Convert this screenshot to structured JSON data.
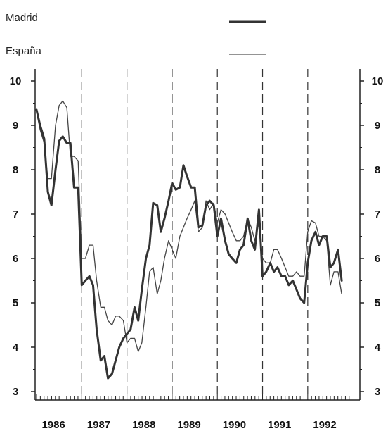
{
  "chart_data": {
    "type": "line",
    "title": "",
    "xlabel": "",
    "ylabel": "",
    "ylim": [
      3,
      10
    ],
    "xlim": [
      1986.0,
      1992.92
    ],
    "y_ticks": [
      "3",
      "4",
      "5",
      "6",
      "7",
      "8",
      "9",
      "10"
    ],
    "x_categories": [
      "1986",
      "1987",
      "1988",
      "1989",
      "1990",
      "1991",
      "1992"
    ],
    "grid": "vertical dashed lines at year boundaries",
    "legend": "top-right",
    "series": [
      {
        "name": "Madrid",
        "color": "#333333",
        "style": "thick",
        "points": [
          [
            1986.0,
            9.35
          ],
          [
            1986.08,
            9.0
          ],
          [
            1986.17,
            8.7
          ],
          [
            1986.25,
            7.5
          ],
          [
            1986.33,
            7.2
          ],
          [
            1986.42,
            8.0
          ],
          [
            1986.5,
            8.65
          ],
          [
            1986.58,
            8.75
          ],
          [
            1986.67,
            8.6
          ],
          [
            1986.75,
            8.6
          ],
          [
            1986.83,
            7.6
          ],
          [
            1986.92,
            7.6
          ],
          [
            1987.0,
            5.4
          ],
          [
            1987.08,
            5.5
          ],
          [
            1987.17,
            5.6
          ],
          [
            1987.25,
            5.4
          ],
          [
            1987.33,
            4.4
          ],
          [
            1987.42,
            3.7
          ],
          [
            1987.5,
            3.8
          ],
          [
            1987.58,
            3.3
          ],
          [
            1987.67,
            3.4
          ],
          [
            1987.75,
            3.7
          ],
          [
            1987.83,
            4.0
          ],
          [
            1987.92,
            4.2
          ],
          [
            1988.0,
            4.3
          ],
          [
            1988.08,
            4.4
          ],
          [
            1988.17,
            4.9
          ],
          [
            1988.25,
            4.6
          ],
          [
            1988.33,
            5.3
          ],
          [
            1988.42,
            6.0
          ],
          [
            1988.5,
            6.3
          ],
          [
            1988.58,
            7.25
          ],
          [
            1988.67,
            7.2
          ],
          [
            1988.75,
            6.6
          ],
          [
            1988.83,
            6.9
          ],
          [
            1988.92,
            7.3
          ],
          [
            1989.0,
            7.7
          ],
          [
            1989.08,
            7.55
          ],
          [
            1989.17,
            7.6
          ],
          [
            1989.25,
            8.1
          ],
          [
            1989.33,
            7.85
          ],
          [
            1989.42,
            7.6
          ],
          [
            1989.5,
            7.6
          ],
          [
            1989.58,
            6.7
          ],
          [
            1989.67,
            6.75
          ],
          [
            1989.75,
            7.2
          ],
          [
            1989.83,
            7.3
          ],
          [
            1989.92,
            7.2
          ],
          [
            1990.0,
            6.5
          ],
          [
            1990.08,
            6.9
          ],
          [
            1990.17,
            6.4
          ],
          [
            1990.25,
            6.1
          ],
          [
            1990.33,
            6.0
          ],
          [
            1990.42,
            5.9
          ],
          [
            1990.5,
            6.2
          ],
          [
            1990.58,
            6.3
          ],
          [
            1990.67,
            6.9
          ],
          [
            1990.75,
            6.4
          ],
          [
            1990.83,
            6.2
          ],
          [
            1990.92,
            7.1
          ],
          [
            1991.0,
            5.6
          ],
          [
            1991.08,
            5.7
          ],
          [
            1991.17,
            5.9
          ],
          [
            1991.25,
            5.7
          ],
          [
            1991.33,
            5.8
          ],
          [
            1991.42,
            5.6
          ],
          [
            1991.5,
            5.6
          ],
          [
            1991.58,
            5.4
          ],
          [
            1991.67,
            5.5
          ],
          [
            1991.75,
            5.3
          ],
          [
            1991.83,
            5.1
          ],
          [
            1991.92,
            5.0
          ],
          [
            1992.0,
            5.9
          ],
          [
            1992.08,
            6.4
          ],
          [
            1992.17,
            6.6
          ],
          [
            1992.25,
            6.3
          ],
          [
            1992.33,
            6.5
          ],
          [
            1992.42,
            6.5
          ],
          [
            1992.5,
            5.8
          ],
          [
            1992.58,
            5.9
          ],
          [
            1992.67,
            6.2
          ],
          [
            1992.75,
            5.5
          ]
        ]
      },
      {
        "name": "España",
        "color": "#444444",
        "style": "thin",
        "points": [
          [
            1986.0,
            9.3
          ],
          [
            1986.08,
            8.9
          ],
          [
            1986.17,
            8.6
          ],
          [
            1986.25,
            7.8
          ],
          [
            1986.33,
            7.8
          ],
          [
            1986.42,
            9.0
          ],
          [
            1986.5,
            9.45
          ],
          [
            1986.58,
            9.55
          ],
          [
            1986.67,
            9.4
          ],
          [
            1986.75,
            8.3
          ],
          [
            1986.83,
            8.3
          ],
          [
            1986.92,
            8.2
          ],
          [
            1987.0,
            6.0
          ],
          [
            1987.08,
            6.0
          ],
          [
            1987.17,
            6.3
          ],
          [
            1987.25,
            6.3
          ],
          [
            1987.33,
            5.5
          ],
          [
            1987.42,
            4.9
          ],
          [
            1987.5,
            4.9
          ],
          [
            1987.58,
            4.6
          ],
          [
            1987.67,
            4.5
          ],
          [
            1987.75,
            4.7
          ],
          [
            1987.83,
            4.7
          ],
          [
            1987.92,
            4.6
          ],
          [
            1988.0,
            4.1
          ],
          [
            1988.08,
            4.2
          ],
          [
            1988.17,
            4.2
          ],
          [
            1988.25,
            3.9
          ],
          [
            1988.33,
            4.1
          ],
          [
            1988.42,
            4.9
          ],
          [
            1988.5,
            5.7
          ],
          [
            1988.58,
            5.8
          ],
          [
            1988.67,
            5.2
          ],
          [
            1988.75,
            5.5
          ],
          [
            1988.83,
            6.0
          ],
          [
            1988.92,
            6.4
          ],
          [
            1989.0,
            6.2
          ],
          [
            1989.08,
            6.0
          ],
          [
            1989.17,
            6.5
          ],
          [
            1989.25,
            6.7
          ],
          [
            1989.33,
            6.9
          ],
          [
            1989.42,
            7.1
          ],
          [
            1989.5,
            7.3
          ],
          [
            1989.58,
            6.6
          ],
          [
            1989.67,
            6.7
          ],
          [
            1989.75,
            7.3
          ],
          [
            1989.83,
            7.1
          ],
          [
            1989.92,
            7.25
          ],
          [
            1990.0,
            6.8
          ],
          [
            1990.08,
            7.1
          ],
          [
            1990.17,
            7.0
          ],
          [
            1990.25,
            6.8
          ],
          [
            1990.33,
            6.6
          ],
          [
            1990.42,
            6.4
          ],
          [
            1990.5,
            6.4
          ],
          [
            1990.58,
            6.5
          ],
          [
            1990.67,
            6.9
          ],
          [
            1990.75,
            6.7
          ],
          [
            1990.83,
            6.4
          ],
          [
            1990.92,
            6.8
          ],
          [
            1991.0,
            6.0
          ],
          [
            1991.08,
            5.9
          ],
          [
            1991.17,
            5.9
          ],
          [
            1991.25,
            6.2
          ],
          [
            1991.33,
            6.2
          ],
          [
            1991.42,
            6.0
          ],
          [
            1991.5,
            5.8
          ],
          [
            1991.58,
            5.6
          ],
          [
            1991.67,
            5.6
          ],
          [
            1991.75,
            5.7
          ],
          [
            1991.83,
            5.6
          ],
          [
            1991.92,
            5.6
          ],
          [
            1992.0,
            6.6
          ],
          [
            1992.08,
            6.85
          ],
          [
            1992.17,
            6.8
          ],
          [
            1992.25,
            6.5
          ],
          [
            1992.33,
            6.5
          ],
          [
            1992.42,
            6.4
          ],
          [
            1992.5,
            5.4
          ],
          [
            1992.58,
            5.7
          ],
          [
            1992.67,
            5.7
          ],
          [
            1992.75,
            5.2
          ]
        ]
      }
    ]
  }
}
